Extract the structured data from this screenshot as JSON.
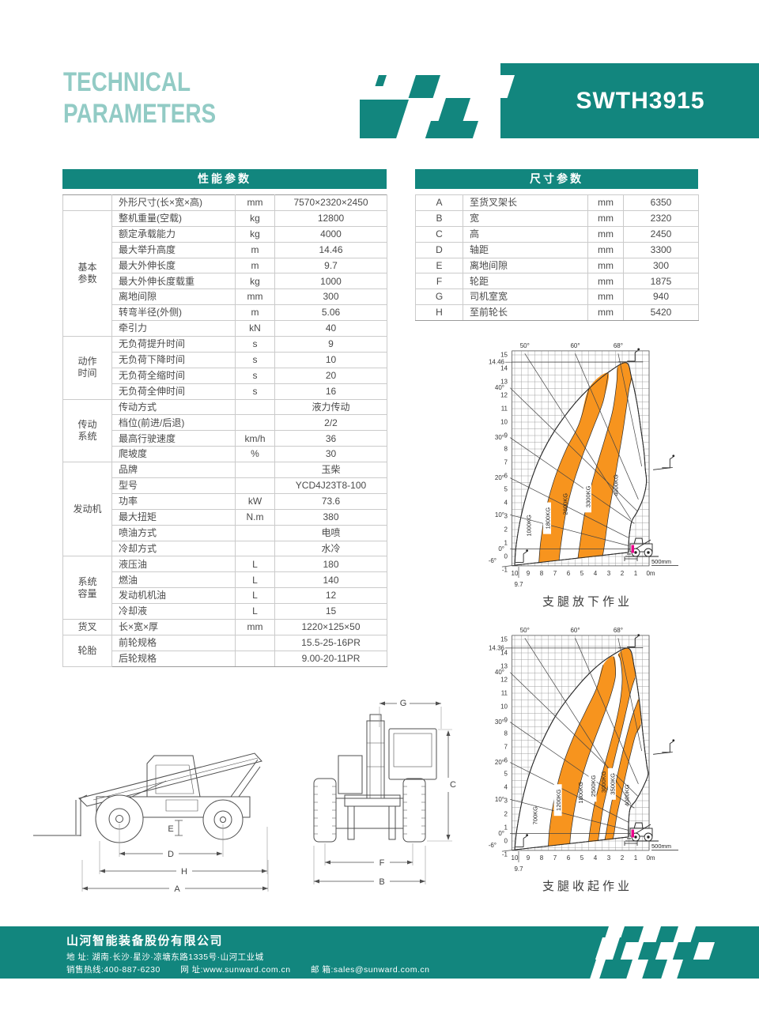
{
  "header": {
    "title_line1": "TECHNICAL",
    "title_line2": "PARAMETERS",
    "model": "SWTH3915"
  },
  "colors": {
    "teal": "#12867e",
    "title_teal": "#92cbc5",
    "orange": "#f7941e",
    "magenta": "#ec008c"
  },
  "performance_table": {
    "title": "性能参数",
    "rows": [
      {
        "g": "",
        "n": "外形尺寸(长×宽×高)",
        "u": "mm",
        "v": "7570×2320×2450"
      },
      {
        "g": "基本参数",
        "n": "整机重量(空载)",
        "u": "kg",
        "v": "12800"
      },
      {
        "g": "基本参数",
        "n": "额定承载能力",
        "u": "kg",
        "v": "4000"
      },
      {
        "g": "基本参数",
        "n": "最大举升高度",
        "u": "m",
        "v": "14.46"
      },
      {
        "g": "基本参数",
        "n": "最大外伸长度",
        "u": "m",
        "v": "9.7"
      },
      {
        "g": "基本参数",
        "n": "最大外伸长度载重",
        "u": "kg",
        "v": "1000"
      },
      {
        "g": "基本参数",
        "n": "离地间隙",
        "u": "mm",
        "v": "300"
      },
      {
        "g": "基本参数",
        "n": "转弯半径(外侧)",
        "u": "m",
        "v": "5.06"
      },
      {
        "g": "基本参数",
        "n": "牵引力",
        "u": "kN",
        "v": "40"
      },
      {
        "g": "动作时间",
        "n": "无负荷提升时间",
        "u": "s",
        "v": "9"
      },
      {
        "g": "动作时间",
        "n": "无负荷下降时间",
        "u": "s",
        "v": "10"
      },
      {
        "g": "动作时间",
        "n": "无负荷全缩时间",
        "u": "s",
        "v": "20"
      },
      {
        "g": "动作时间",
        "n": "无负荷全伸时间",
        "u": "s",
        "v": "16"
      },
      {
        "g": "传动系统",
        "n": "传动方式",
        "u": "",
        "v": "液力传动"
      },
      {
        "g": "传动系统",
        "n": "档位(前进/后退)",
        "u": "",
        "v": "2/2"
      },
      {
        "g": "传动系统",
        "n": "最高行驶速度",
        "u": "km/h",
        "v": "36"
      },
      {
        "g": "传动系统",
        "n": "爬坡度",
        "u": "%",
        "v": "30"
      },
      {
        "g": "发动机",
        "n": "品牌",
        "u": "",
        "v": "玉柴"
      },
      {
        "g": "发动机",
        "n": "型号",
        "u": "",
        "v": "YCD4J23T8-100"
      },
      {
        "g": "发动机",
        "n": "功率",
        "u": "kW",
        "v": "73.6"
      },
      {
        "g": "发动机",
        "n": "最大扭矩",
        "u": "N.m",
        "v": "380"
      },
      {
        "g": "发动机",
        "n": "喷油方式",
        "u": "",
        "v": "电喷"
      },
      {
        "g": "发动机",
        "n": "冷却方式",
        "u": "",
        "v": "水冷"
      },
      {
        "g": "系统容量",
        "n": "液压油",
        "u": "L",
        "v": "180"
      },
      {
        "g": "系统容量",
        "n": "燃油",
        "u": "L",
        "v": "140"
      },
      {
        "g": "系统容量",
        "n": "发动机机油",
        "u": "L",
        "v": "12"
      },
      {
        "g": "系统容量",
        "n": "冷却液",
        "u": "L",
        "v": "15"
      },
      {
        "g": "货叉",
        "n": "长×宽×厚",
        "u": "mm",
        "v": "1220×125×50"
      },
      {
        "g": "轮胎",
        "n": "前轮规格",
        "u": "",
        "v": "15.5-25-16PR"
      },
      {
        "g": "轮胎",
        "n": "后轮规格",
        "u": "",
        "v": "9.00-20-11PR"
      }
    ]
  },
  "dimension_table": {
    "title": "尺寸参数",
    "rows": [
      {
        "k": "A",
        "n": "至货叉架长",
        "u": "mm",
        "v": "6350"
      },
      {
        "k": "B",
        "n": "宽",
        "u": "mm",
        "v": "2320"
      },
      {
        "k": "C",
        "n": "高",
        "u": "mm",
        "v": "2450"
      },
      {
        "k": "D",
        "n": "轴距",
        "u": "mm",
        "v": "3300"
      },
      {
        "k": "E",
        "n": "离地间隙",
        "u": "mm",
        "v": "300"
      },
      {
        "k": "F",
        "n": "轮距",
        "u": "mm",
        "v": "1875"
      },
      {
        "k": "G",
        "n": "司机室宽",
        "u": "mm",
        "v": "940"
      },
      {
        "k": "H",
        "n": "至前轮长",
        "u": "mm",
        "v": "5420"
      }
    ]
  },
  "chart_data": [
    {
      "type": "load-chart",
      "caption": "支腿放下作业",
      "max_lift_height_m": 14.46,
      "max_reach_m": 9.7,
      "height_marker": "14.46",
      "reach_marker": "9.7",
      "note": "500mm",
      "x_axis_ticks": [
        "10",
        "9",
        "8",
        "7",
        "6",
        "5",
        "4",
        "3",
        "2",
        "1",
        "0m"
      ],
      "y_axis_ticks": [
        "15",
        "14",
        "13",
        "12",
        "11",
        "10",
        "9",
        "8",
        "7",
        "6",
        "5",
        "4",
        "3",
        "2",
        "1",
        "0",
        "-1"
      ],
      "boom_angle_labels": [
        "0°",
        "10°",
        "20°",
        "30°",
        "40°",
        "50°",
        "60°",
        "68°",
        "-6°"
      ],
      "load_zones": [
        {
          "label": "1000KG",
          "color": "white"
        },
        {
          "label": "1800KG",
          "color": "orange"
        },
        {
          "label": "2600KG",
          "color": "white"
        },
        {
          "label": "3300KG",
          "color": "orange"
        },
        {
          "label": "4000KG",
          "color": "white"
        }
      ]
    },
    {
      "type": "load-chart",
      "caption": "支腿收起作业",
      "max_lift_height_m": 14.36,
      "max_reach_m": 9.7,
      "height_marker": "14.36",
      "reach_marker": "9.7",
      "note": "500mm",
      "x_axis_ticks": [
        "10",
        "9",
        "8",
        "7",
        "6",
        "5",
        "4",
        "3",
        "2",
        "1",
        "0m"
      ],
      "y_axis_ticks": [
        "15",
        "14",
        "13",
        "12",
        "11",
        "10",
        "9",
        "8",
        "7",
        "6",
        "5",
        "4",
        "3",
        "2",
        "1",
        "0",
        "-1"
      ],
      "boom_angle_labels": [
        "0°",
        "10°",
        "20°",
        "30°",
        "40°",
        "50°",
        "60°",
        "68°",
        "-6°"
      ],
      "load_zones": [
        {
          "label": "700KG",
          "color": "white"
        },
        {
          "label": "1200KG",
          "color": "orange"
        },
        {
          "label": "1800KG",
          "color": "white"
        },
        {
          "label": "2500KG",
          "color": "orange"
        },
        {
          "label": "3000KG",
          "color": "white"
        },
        {
          "label": "3500KG",
          "color": "orange"
        },
        {
          "label": "4000KG",
          "color": "white"
        }
      ]
    }
  ],
  "drawings": {
    "side_view_labels": {
      "e": "E",
      "d": "D",
      "h": "H",
      "a": "A"
    },
    "front_view_labels": {
      "g": "G",
      "c": "C",
      "f": "F",
      "b": "B"
    }
  },
  "footer": {
    "company": "山河智能装备股份有限公司",
    "address_label": "地  址:",
    "address": "湖南·长沙·星沙·凉塘东路1335号·山河工业城",
    "hotline_label": "销售热线:",
    "hotline": "400-887-6230",
    "web_label": "网  址:",
    "web": "www.sunward.com.cn",
    "email_label": "邮  箱:",
    "email": "sales@sunward.com.cn"
  }
}
